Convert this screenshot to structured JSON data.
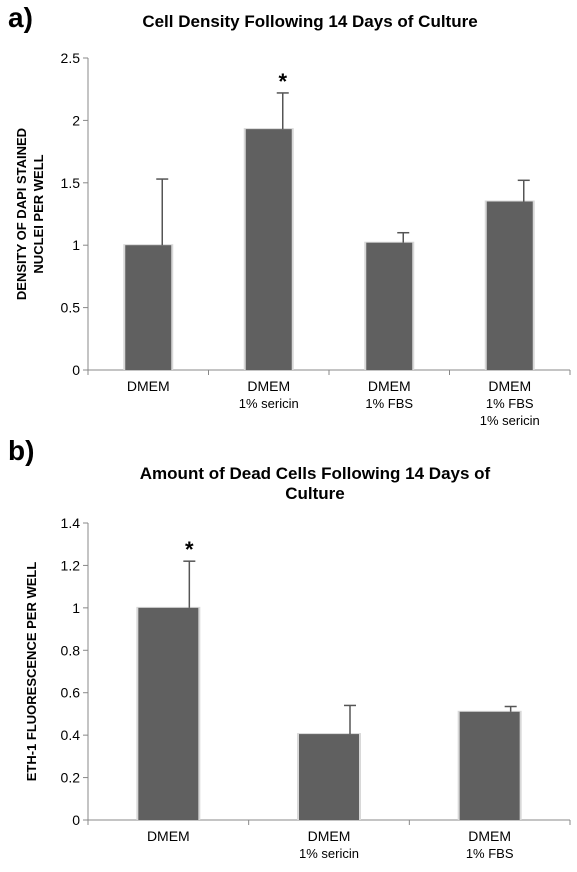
{
  "chart_data": [
    {
      "panel": "a)",
      "type": "bar",
      "title": "Cell Density Following 14 Days of Culture",
      "ylabel": [
        "DENSITY OF DAPI STAINED",
        "NUCLEI PER WELL"
      ],
      "ylim": [
        0,
        2.5
      ],
      "yticks": [
        "0",
        "0.5",
        "1",
        "1.5",
        "2",
        "2.5"
      ],
      "categories": [
        [
          "DMEM"
        ],
        [
          "DMEM",
          "1% sericin"
        ],
        [
          "DMEM",
          "1% FBS"
        ],
        [
          "DMEM",
          "1% FBS",
          "1% sericin"
        ]
      ],
      "values": [
        1.0,
        1.93,
        1.02,
        1.35
      ],
      "error_upper": [
        0.53,
        0.29,
        0.08,
        0.17
      ],
      "significance": [
        "",
        "*",
        "",
        ""
      ],
      "bar_color": "#606060"
    },
    {
      "panel": "b)",
      "type": "bar",
      "title": [
        "Amount of Dead Cells Following 14 Days of",
        "Culture"
      ],
      "ylabel": [
        "ETH-1 FLUORESCENCE PER WELL"
      ],
      "ylim": [
        0,
        1.4
      ],
      "yticks": [
        "0",
        "0.2",
        "0.4",
        "0.6",
        "0.8",
        "1",
        "1.2",
        "1.4"
      ],
      "categories": [
        [
          "DMEM"
        ],
        [
          "DMEM",
          "1% sericin"
        ],
        [
          "DMEM",
          "1% FBS"
        ]
      ],
      "values": [
        1.0,
        0.405,
        0.51
      ],
      "error_upper": [
        0.22,
        0.135,
        0.025
      ],
      "significance": [
        "*",
        "",
        ""
      ],
      "bar_color": "#606060"
    }
  ]
}
